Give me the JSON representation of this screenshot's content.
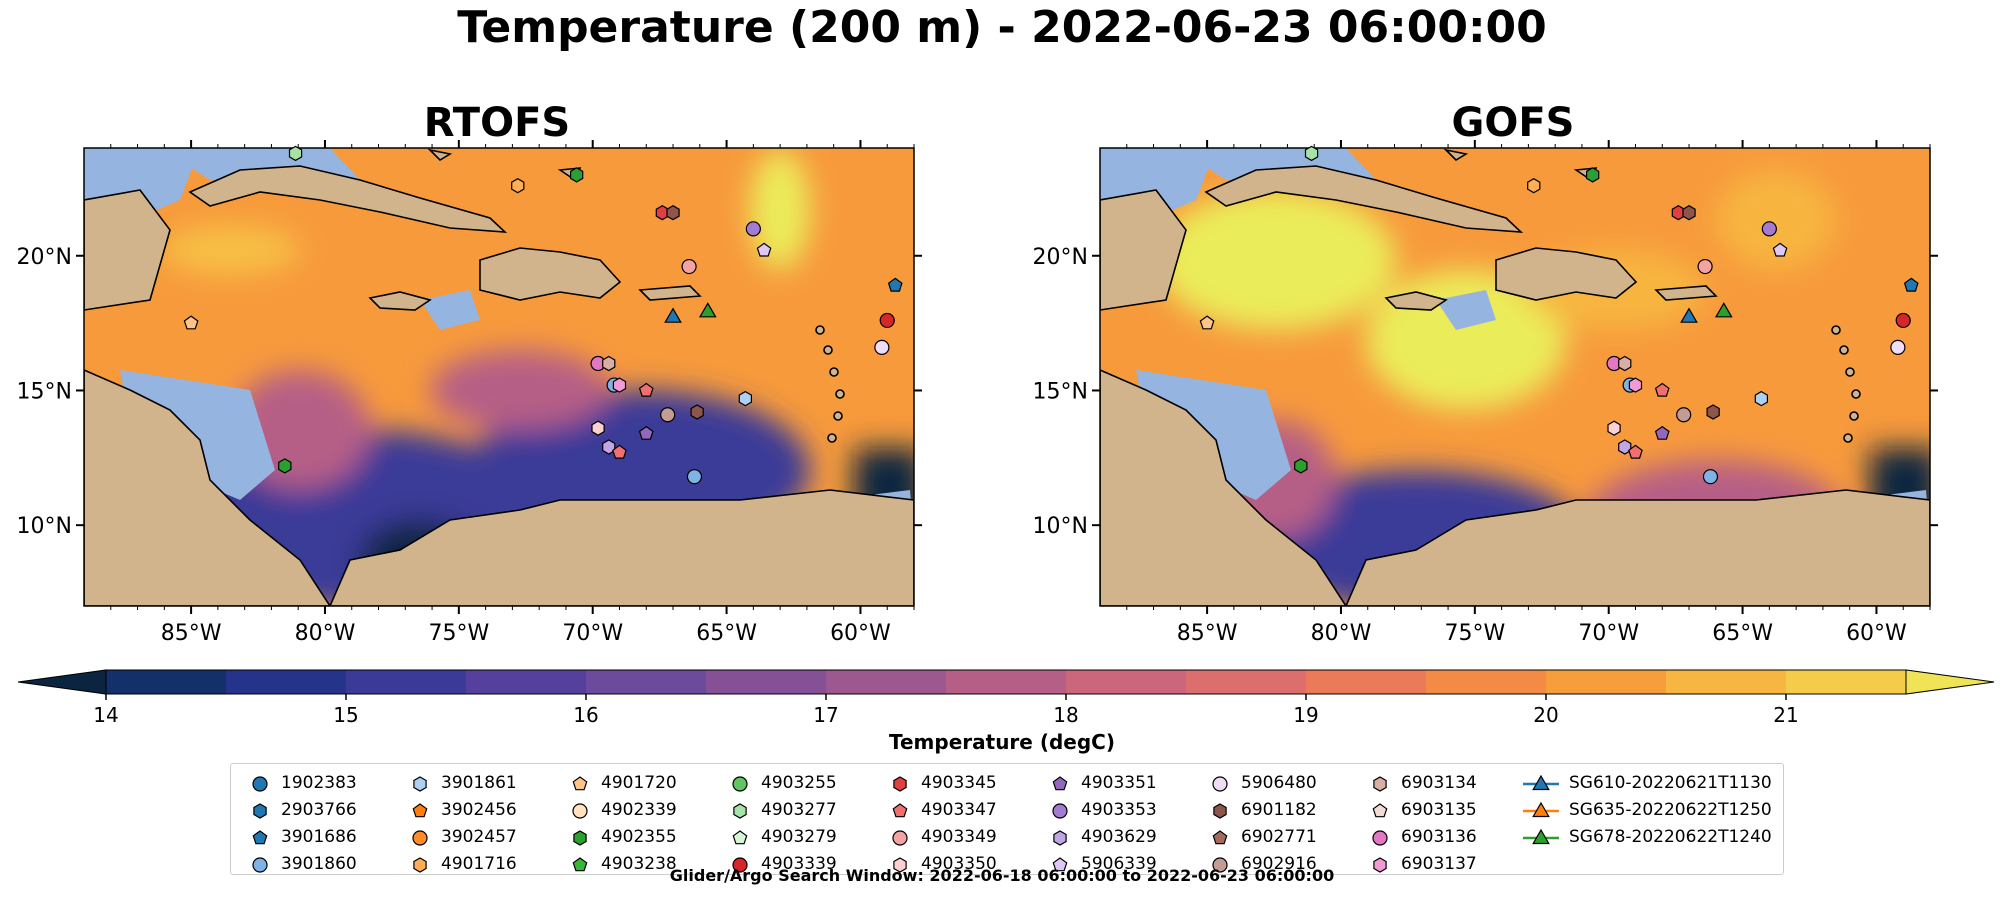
{
  "title": "Temperature (200 m) - 2022-06-23 06:00:00",
  "panels": [
    {
      "name": "RTOFS"
    },
    {
      "name": "GOFS"
    }
  ],
  "axes": {
    "lon_ticks": [
      "85°W",
      "80°W",
      "75°W",
      "70°W",
      "65°W",
      "60°W"
    ],
    "lat_ticks": [
      "20°N",
      "15°N",
      "10°N"
    ]
  },
  "colorbar": {
    "label": "Temperature (degC)",
    "ticks": [
      "14",
      "15",
      "16",
      "17",
      "18",
      "19",
      "20",
      "21"
    ],
    "colors": [
      "#0b2540",
      "#14306a",
      "#25348a",
      "#3a3a98",
      "#56409e",
      "#6c4a9c",
      "#865097",
      "#9e5890",
      "#b65f86",
      "#cb667c",
      "#dc6e6e",
      "#eb7a58",
      "#f38a46",
      "#f79e3c",
      "#f7b541",
      "#f4cc4a",
      "#f0e456"
    ],
    "extend": "both"
  },
  "map_colors": {
    "land": "#d2b48c",
    "shallow_water": "#95b4df",
    "warm": "#f79a3c",
    "hot": "#ebec5a",
    "mid": "#b65f86",
    "cool": "#3a3a98",
    "deep": "#0b2540"
  },
  "legend": {
    "columns": [
      [
        {
          "label": "1902383",
          "marker": "circle",
          "color": "#1f77b4"
        },
        {
          "label": "2903766",
          "marker": "hexagon",
          "color": "#1f77b4"
        },
        {
          "label": "3901686",
          "marker": "pentagon",
          "color": "#1f77b4"
        },
        {
          "label": "3901860",
          "marker": "circle",
          "color": "#7fb2e5"
        }
      ],
      [
        {
          "label": "3901861",
          "marker": "hexagon",
          "color": "#aed0f2"
        },
        {
          "label": "3902456",
          "marker": "pentagon",
          "color": "#ff7f0e"
        },
        {
          "label": "3902457",
          "marker": "circle",
          "color": "#ff8c2a"
        },
        {
          "label": "4901716",
          "marker": "hexagon",
          "color": "#ffae55"
        }
      ],
      [
        {
          "label": "4901720",
          "marker": "pentagon",
          "color": "#ffc48a"
        },
        {
          "label": "4902339",
          "marker": "circle",
          "color": "#ffe2c0"
        },
        {
          "label": "4902355",
          "marker": "hexagon",
          "color": "#2ca02c"
        },
        {
          "label": "4903238",
          "marker": "pentagon",
          "color": "#39b539"
        }
      ],
      [
        {
          "label": "4903255",
          "marker": "circle",
          "color": "#62c462"
        },
        {
          "label": "4903277",
          "marker": "hexagon",
          "color": "#a6e3a6"
        },
        {
          "label": "4903279",
          "marker": "pentagon",
          "color": "#d6f5d6"
        },
        {
          "label": "4903339",
          "marker": "circle",
          "color": "#d62728"
        }
      ],
      [
        {
          "label": "4903345",
          "marker": "hexagon",
          "color": "#e0403f"
        },
        {
          "label": "4903347",
          "marker": "pentagon",
          "color": "#f07070"
        },
        {
          "label": "4903349",
          "marker": "circle",
          "color": "#f4a3a3"
        },
        {
          "label": "4903350",
          "marker": "hexagon",
          "color": "#fcd0d0"
        }
      ],
      [
        {
          "label": "4903351",
          "marker": "pentagon",
          "color": "#9467bd"
        },
        {
          "label": "4903353",
          "marker": "circle",
          "color": "#a37bd0"
        },
        {
          "label": "4903629",
          "marker": "hexagon",
          "color": "#c2a5e4"
        },
        {
          "label": "5906339",
          "marker": "pentagon",
          "color": "#dcc8f3"
        }
      ],
      [
        {
          "label": "5906480",
          "marker": "circle",
          "color": "#f0dcf7"
        },
        {
          "label": "6901182",
          "marker": "hexagon",
          "color": "#8c564b"
        },
        {
          "label": "6902771",
          "marker": "pentagon",
          "color": "#a56a5e"
        },
        {
          "label": "6902916",
          "marker": "circle",
          "color": "#c49c94"
        }
      ],
      [
        {
          "label": "6903134",
          "marker": "hexagon",
          "color": "#d9aea3"
        },
        {
          "label": "6903135",
          "marker": "pentagon",
          "color": "#f4dcd2"
        },
        {
          "label": "6903136",
          "marker": "circle",
          "color": "#e377c2"
        },
        {
          "label": "6903137",
          "marker": "hexagon",
          "color": "#f29ad6"
        }
      ],
      [
        {
          "label": "SG610-20220621T1130",
          "marker": "triangle-line",
          "color": "#1f77b4"
        },
        {
          "label": "SG635-20220622T1250",
          "marker": "triangle-line",
          "color": "#ff7f0e"
        },
        {
          "label": "SG678-20220622T1240",
          "marker": "triangle-line",
          "color": "#2ca02c"
        }
      ]
    ]
  },
  "footer": "Glider/Argo Search Window: 2022-06-18 06:00:00 to 2022-06-23 06:00:00"
}
